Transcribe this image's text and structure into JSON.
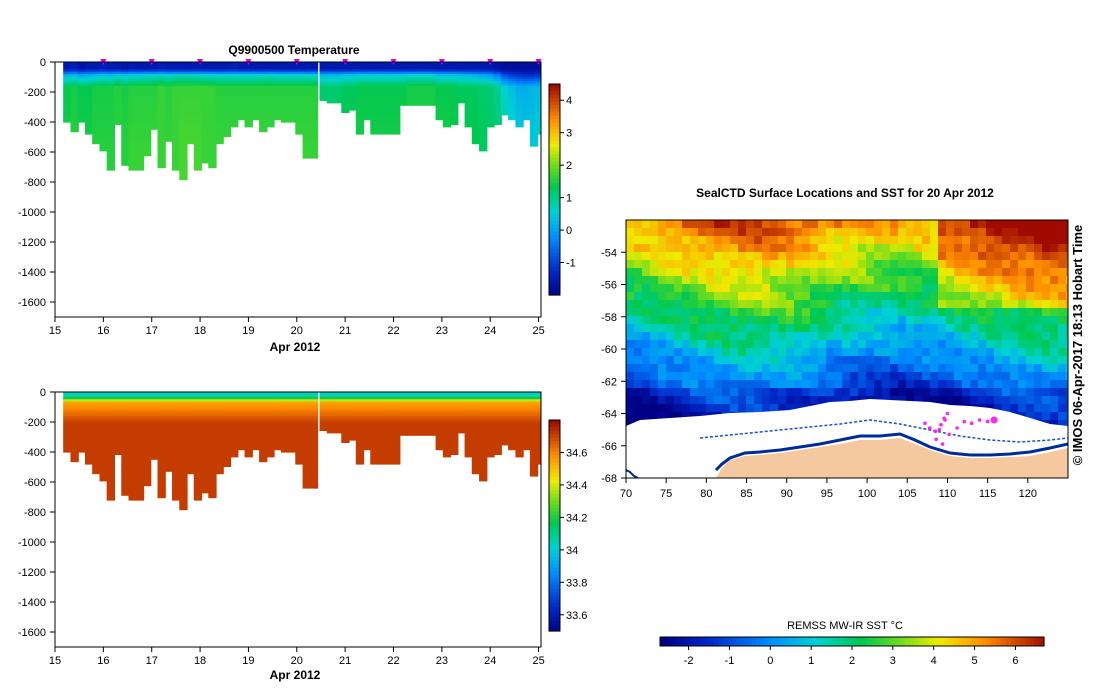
{
  "chart_data": [
    {
      "type": "heatmap",
      "title": "Q9900500  Temperature",
      "xlabel": "Apr 2012",
      "ylabel": "",
      "xlim": [
        15,
        25.05
      ],
      "ylim": [
        -1700,
        0
      ],
      "x_ticks": [
        "15",
        "16",
        "17",
        "18",
        "19",
        "20",
        "21",
        "22",
        "23",
        "24",
        "25"
      ],
      "y_ticks": [
        "0",
        "-200",
        "-400",
        "-600",
        "-800",
        "-1000",
        "-1200",
        "-1400",
        "-1600"
      ],
      "colorbar": {
        "min": -2,
        "max": 4.5,
        "ticks": [
          "-1",
          "0",
          "1",
          "2",
          "3",
          "4"
        ]
      },
      "profile_markers_x": [
        16,
        17,
        18,
        19,
        20,
        21,
        22,
        23,
        24,
        25
      ],
      "profiles": [
        {
          "x": 15.25,
          "depth": 400,
          "v": [
            -1.5,
            0.2,
            1.4,
            1.5
          ]
        },
        {
          "x": 15.4,
          "depth": 450,
          "v": [
            -1.4,
            0.3,
            1.5,
            1.6
          ]
        },
        {
          "x": 15.55,
          "depth": 390,
          "v": [
            -1.6,
            0.1,
            1.4,
            1.5
          ]
        },
        {
          "x": 15.7,
          "depth": 480,
          "v": [
            -1.5,
            0.2,
            1.4,
            1.5
          ]
        },
        {
          "x": 15.85,
          "depth": 530,
          "v": [
            -1.5,
            0.3,
            1.5,
            1.6
          ]
        },
        {
          "x": 16.0,
          "depth": 590,
          "v": [
            -1.4,
            0.4,
            1.5,
            1.6
          ]
        },
        {
          "x": 16.15,
          "depth": 720,
          "v": [
            -1.5,
            0.3,
            1.5,
            1.6
          ]
        },
        {
          "x": 16.3,
          "depth": 410,
          "v": [
            -1.5,
            0.5,
            1.6,
            1.6
          ]
        },
        {
          "x": 16.45,
          "depth": 680,
          "v": [
            -1.6,
            0.4,
            1.5,
            1.6
          ]
        },
        {
          "x": 16.6,
          "depth": 710,
          "v": [
            -1.5,
            0.5,
            1.6,
            1.7
          ]
        },
        {
          "x": 16.75,
          "depth": 710,
          "v": [
            -1.5,
            0.5,
            1.6,
            1.7
          ]
        },
        {
          "x": 16.9,
          "depth": 620,
          "v": [
            -1.5,
            0.6,
            1.6,
            1.7
          ]
        },
        {
          "x": 17.05,
          "depth": 440,
          "v": [
            -1.5,
            0.6,
            1.6,
            1.7
          ]
        },
        {
          "x": 17.2,
          "depth": 690,
          "v": [
            -1.4,
            0.7,
            1.7,
            1.7
          ]
        },
        {
          "x": 17.35,
          "depth": 520,
          "v": [
            -1.5,
            0.6,
            1.6,
            1.7
          ]
        },
        {
          "x": 17.5,
          "depth": 710,
          "v": [
            -1.5,
            0.7,
            1.7,
            1.7
          ]
        },
        {
          "x": 17.65,
          "depth": 780,
          "v": [
            -1.5,
            0.7,
            1.7,
            1.8
          ]
        },
        {
          "x": 17.8,
          "depth": 540,
          "v": [
            -1.5,
            0.7,
            1.7,
            1.8
          ]
        },
        {
          "x": 17.95,
          "depth": 710,
          "v": [
            -1.5,
            0.7,
            1.7,
            1.8
          ]
        },
        {
          "x": 18.1,
          "depth": 660,
          "v": [
            -1.5,
            0.6,
            1.7,
            1.7
          ]
        },
        {
          "x": 18.25,
          "depth": 690,
          "v": [
            -1.5,
            0.6,
            1.7,
            1.7
          ]
        },
        {
          "x": 18.4,
          "depth": 530,
          "v": [
            -1.5,
            0.6,
            1.6,
            1.7
          ]
        },
        {
          "x": 18.55,
          "depth": 490,
          "v": [
            -1.5,
            0.6,
            1.6,
            1.7
          ]
        },
        {
          "x": 18.7,
          "depth": 430,
          "v": [
            -1.4,
            0.6,
            1.6,
            1.7
          ]
        },
        {
          "x": 18.85,
          "depth": 380,
          "v": [
            -1.5,
            0.6,
            1.6,
            1.7
          ]
        },
        {
          "x": 19.0,
          "depth": 420,
          "v": [
            -1.5,
            0.6,
            1.6,
            1.7
          ]
        },
        {
          "x": 19.15,
          "depth": 370,
          "v": [
            -1.5,
            0.6,
            1.6,
            1.7
          ]
        },
        {
          "x": 19.3,
          "depth": 460,
          "v": [
            -1.5,
            0.6,
            1.6,
            1.7
          ]
        },
        {
          "x": 19.45,
          "depth": 420,
          "v": [
            -1.5,
            0.7,
            1.6,
            1.7
          ]
        },
        {
          "x": 19.6,
          "depth": 370,
          "v": [
            -1.5,
            0.6,
            1.6,
            1.7
          ]
        },
        {
          "x": 19.75,
          "depth": 390,
          "v": [
            -1.5,
            0.6,
            1.6,
            1.7
          ]
        },
        {
          "x": 19.9,
          "depth": 400,
          "v": [
            -1.5,
            0.6,
            1.6,
            1.7
          ]
        },
        {
          "x": 20.05,
          "depth": 480,
          "v": [
            -1.5,
            0.6,
            1.6,
            1.7
          ]
        },
        {
          "x": 20.2,
          "depth": 640,
          "v": [
            -1.5,
            0.6,
            1.6,
            1.7
          ]
        },
        {
          "x": 20.35,
          "depth": 640,
          "v": [
            -1.5,
            0.6,
            1.6,
            1.7
          ]
        },
        {
          "x": 20.55,
          "depth": 250,
          "v": [
            -1.5,
            0.3,
            1.2,
            1.3
          ]
        },
        {
          "x": 20.7,
          "depth": 270,
          "v": [
            -1.5,
            0.3,
            1.2,
            1.3
          ]
        },
        {
          "x": 20.85,
          "depth": 270,
          "v": [
            -1.5,
            0.3,
            1.2,
            1.3
          ]
        },
        {
          "x": 21.0,
          "depth": 330,
          "v": [
            -1.5,
            0.4,
            1.3,
            1.4
          ]
        },
        {
          "x": 21.15,
          "depth": 310,
          "v": [
            -1.5,
            0.4,
            1.3,
            1.4
          ]
        },
        {
          "x": 21.3,
          "depth": 470,
          "v": [
            -1.5,
            0.5,
            1.4,
            1.5
          ]
        },
        {
          "x": 21.45,
          "depth": 370,
          "v": [
            -1.5,
            0.5,
            1.4,
            1.5
          ]
        },
        {
          "x": 21.6,
          "depth": 470,
          "v": [
            -1.5,
            0.5,
            1.4,
            1.5
          ]
        },
        {
          "x": 21.75,
          "depth": 470,
          "v": [
            -1.5,
            0.5,
            1.4,
            1.5
          ]
        },
        {
          "x": 21.9,
          "depth": 470,
          "v": [
            -1.5,
            0.5,
            1.4,
            1.5
          ]
        },
        {
          "x": 22.05,
          "depth": 470,
          "v": [
            -1.5,
            0.5,
            1.4,
            1.5
          ]
        },
        {
          "x": 22.2,
          "depth": 280,
          "v": [
            -1.5,
            0.5,
            1.4,
            1.5
          ]
        },
        {
          "x": 22.35,
          "depth": 280,
          "v": [
            -1.5,
            0.6,
            1.5,
            1.5
          ]
        },
        {
          "x": 22.5,
          "depth": 280,
          "v": [
            -1.5,
            0.6,
            1.5,
            1.5
          ]
        },
        {
          "x": 22.65,
          "depth": 280,
          "v": [
            -1.5,
            0.6,
            1.5,
            1.5
          ]
        },
        {
          "x": 22.8,
          "depth": 280,
          "v": [
            -1.5,
            0.6,
            1.5,
            1.5
          ]
        },
        {
          "x": 22.95,
          "depth": 380,
          "v": [
            -1.5,
            0.4,
            1.4,
            1.5
          ]
        },
        {
          "x": 23.1,
          "depth": 420,
          "v": [
            -1.5,
            0.4,
            1.4,
            1.5
          ]
        },
        {
          "x": 23.25,
          "depth": 410,
          "v": [
            -1.5,
            0.4,
            1.4,
            1.4
          ]
        },
        {
          "x": 23.4,
          "depth": 260,
          "v": [
            -1.5,
            0.3,
            1.3,
            1.4
          ]
        },
        {
          "x": 23.55,
          "depth": 420,
          "v": [
            -1.5,
            0.3,
            1.3,
            1.4
          ]
        },
        {
          "x": 23.7,
          "depth": 530,
          "v": [
            -1.5,
            0.2,
            1.3,
            1.4
          ]
        },
        {
          "x": 23.85,
          "depth": 580,
          "v": [
            -1.5,
            0.1,
            1.2,
            1.3
          ]
        },
        {
          "x": 24.0,
          "depth": 420,
          "v": [
            -1.5,
            0.0,
            1.2,
            1.3
          ]
        },
        {
          "x": 24.15,
          "depth": 410,
          "v": [
            -1.6,
            -0.3,
            1.0,
            1.2
          ]
        },
        {
          "x": 24.3,
          "depth": 350,
          "v": [
            -1.7,
            -0.8,
            0.6,
            1.0
          ]
        },
        {
          "x": 24.45,
          "depth": 370,
          "v": [
            -1.7,
            -1.0,
            0.4,
            0.8
          ]
        },
        {
          "x": 24.6,
          "depth": 430,
          "v": [
            -1.7,
            -1.1,
            0.2,
            0.6
          ]
        },
        {
          "x": 24.75,
          "depth": 370,
          "v": [
            -1.7,
            -1.2,
            0.2,
            0.5
          ]
        },
        {
          "x": 24.9,
          "depth": 550,
          "v": [
            -1.7,
            -1.2,
            0.3,
            0.5
          ]
        },
        {
          "x": 25.0,
          "depth": 470,
          "v": [
            -1.7,
            -1.1,
            0.3,
            0.6
          ]
        }
      ]
    },
    {
      "type": "heatmap",
      "title": "",
      "xlabel": "Apr 2012",
      "ylabel": "",
      "xlim": [
        15,
        25.05
      ],
      "ylim": [
        -1700,
        0
      ],
      "x_ticks": [
        "15",
        "16",
        "17",
        "18",
        "19",
        "20",
        "21",
        "22",
        "23",
        "24",
        "25"
      ],
      "y_ticks": [
        "0",
        "-200",
        "-400",
        "-600",
        "-800",
        "-1000",
        "-1200",
        "-1400",
        "-1600"
      ],
      "colorbar": {
        "min": 33.5,
        "max": 34.8,
        "ticks": [
          "33.6",
          "33.8",
          "34",
          "34.2",
          "34.4",
          "34.6"
        ]
      }
    },
    {
      "type": "heatmap",
      "title": "SealCTD Surface Locations and SST for 20 Apr 2012",
      "xlabel": "",
      "ylabel": "",
      "xlim": [
        70,
        125
      ],
      "ylim": [
        -68,
        -52
      ],
      "x_ticks": [
        "70",
        "75",
        "80",
        "85",
        "90",
        "95",
        "100",
        "105",
        "110",
        "115",
        "120"
      ],
      "y_ticks": [
        "-54",
        "-56",
        "-58",
        "-60",
        "-62",
        "-64",
        "-66",
        "-68"
      ],
      "colorbar": {
        "label": "REMSS MW-IR SST °C",
        "min": -2.7,
        "max": 6.7,
        "ticks": [
          "-2",
          "-1",
          "0",
          "1",
          "2",
          "3",
          "4",
          "5",
          "6"
        ]
      },
      "seal_track": [
        [
          107.2,
          -64.6
        ],
        [
          107.8,
          -64.9
        ],
        [
          108.5,
          -65.1
        ],
        [
          109.2,
          -64.7
        ],
        [
          109.6,
          -64.3
        ],
        [
          110.0,
          -64.0
        ],
        [
          109.7,
          -64.4
        ],
        [
          109.0,
          -65.0
        ],
        [
          108.6,
          -65.6
        ],
        [
          109.4,
          -65.9
        ],
        [
          110.2,
          -65.3
        ],
        [
          111.2,
          -64.9
        ],
        [
          112.1,
          -64.5
        ],
        [
          113.0,
          -64.6
        ],
        [
          114.0,
          -64.4
        ],
        [
          115.0,
          -64.5
        ],
        [
          115.8,
          -64.4
        ]
      ],
      "side_text": "©  IMOS 06-Apr-2017 18:13 Hobart Time"
    }
  ]
}
